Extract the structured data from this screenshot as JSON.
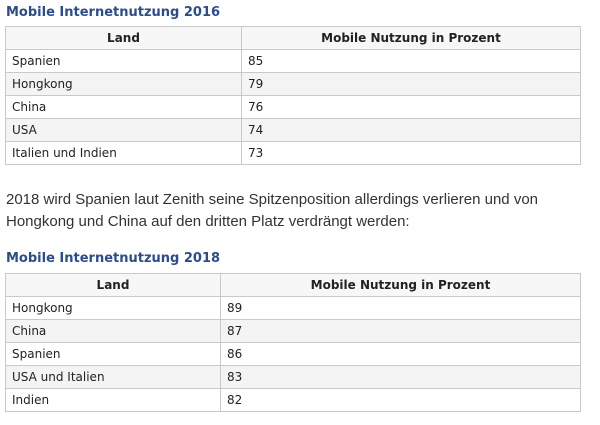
{
  "section_2016": {
    "title": "Mobile Internetnutzung 2016",
    "columns": [
      "Land",
      "Mobile Nutzung in Prozent"
    ],
    "rows": [
      {
        "land": "Spanien",
        "wert": "85"
      },
      {
        "land": "Hongkong",
        "wert": "79"
      },
      {
        "land": "China",
        "wert": "76"
      },
      {
        "land": "USA",
        "wert": "74"
      },
      {
        "land": "Italien und Indien",
        "wert": "73"
      }
    ]
  },
  "paragraph": "2018 wird Spanien laut Zenith seine Spitzenposition allerdings verlieren und von Hongkong und China auf den dritten Platz verdrängt werden:",
  "section_2018": {
    "title": "Mobile Internetnutzung 2018",
    "columns": [
      "Land",
      "Mobile Nutzung in Prozent"
    ],
    "rows": [
      {
        "land": "Hongkong",
        "wert": "89"
      },
      {
        "land": "China",
        "wert": "87"
      },
      {
        "land": "Spanien",
        "wert": "86"
      },
      {
        "land": "USA und Italien",
        "wert": "83"
      },
      {
        "land": "Indien",
        "wert": "82"
      }
    ]
  },
  "colors": {
    "title": "#2a4d8e",
    "border": "#c9c9c9",
    "header_bg": "#f7f7f7",
    "stripe_bg": "#f4f4f4"
  }
}
